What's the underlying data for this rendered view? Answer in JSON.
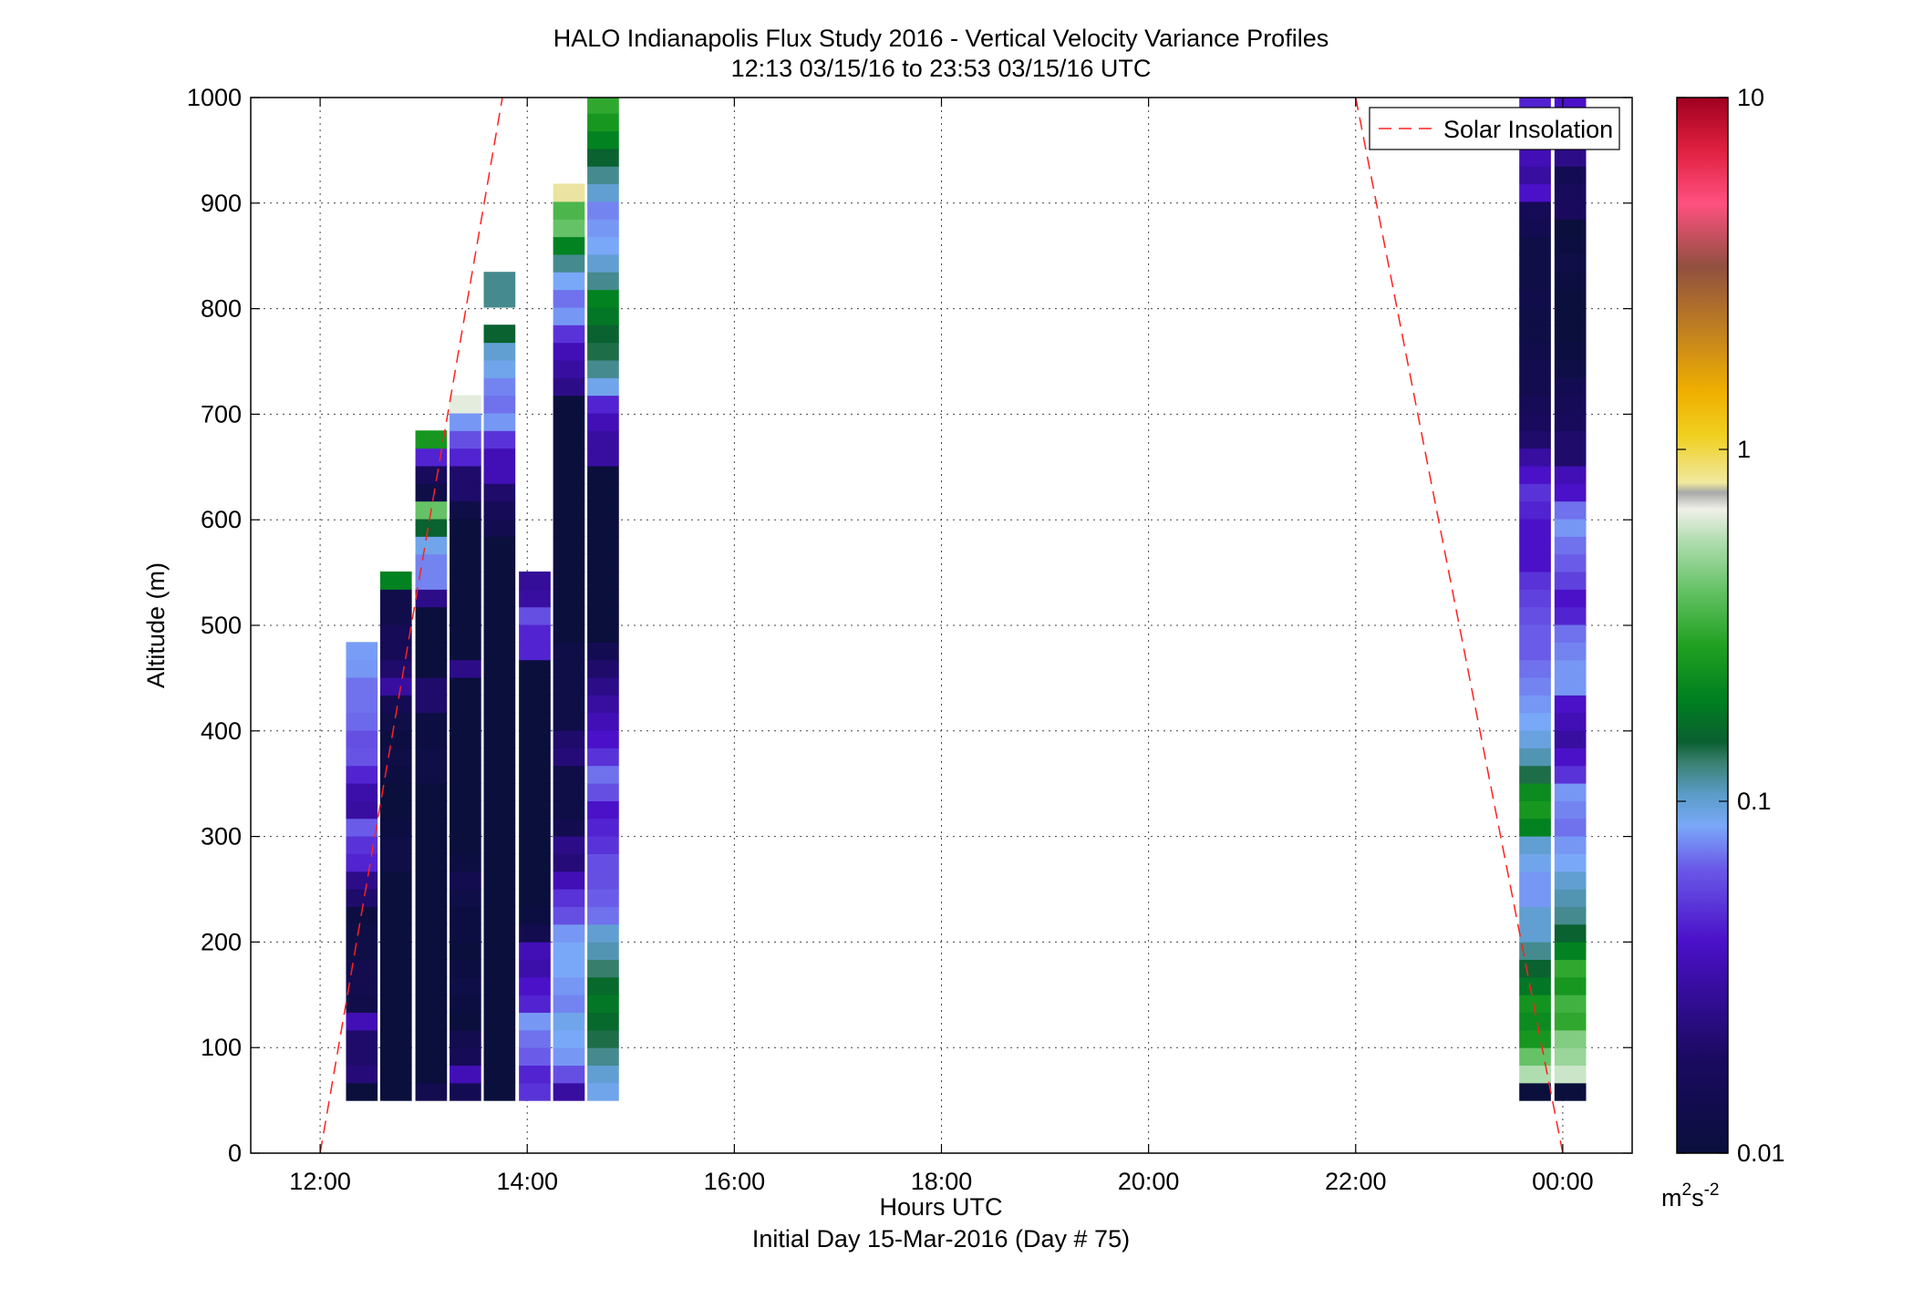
{
  "chart_data": {
    "type": "heatmap",
    "title": "HALO Indianapolis Flux Study 2016 - Vertical Velocity Variance Profiles",
    "subtitle": "12:13 03/15/16 to 23:53 03/15/16  UTC",
    "xlabel": "Hours UTC",
    "xlabel2": "Initial Day 15-Mar-2016 (Day # 75)",
    "ylabel": "Altitude (m)",
    "xlim": [
      11.33,
      24.67
    ],
    "ylim": [
      0,
      1000
    ],
    "x_ticks": [
      12,
      14,
      16,
      18,
      20,
      22,
      24
    ],
    "x_tick_labels": [
      "12:00",
      "14:00",
      "16:00",
      "18:00",
      "20:00",
      "22:00",
      "00:00"
    ],
    "y_ticks": [
      0,
      100,
      200,
      300,
      400,
      500,
      600,
      700,
      800,
      900,
      1000
    ],
    "y_tick_labels": [
      "0",
      "100",
      "200",
      "300",
      "400",
      "500",
      "600",
      "700",
      "800",
      "900",
      "1000"
    ],
    "grid": true,
    "legend": {
      "position": "top-right",
      "entries": [
        "Solar Insolation"
      ]
    },
    "colorbar": {
      "scale": "log",
      "range": [
        0.01,
        10
      ],
      "ticks": [
        0.01,
        0.1,
        1,
        10
      ],
      "tick_labels": [
        "0.01",
        "0.1",
        "1",
        "10"
      ],
      "unit_base": "m",
      "unit_sup1": "2",
      "unit_mid": "s",
      "unit_sup2": "-2"
    },
    "range_gate_bottom_m": 50,
    "range_gate_height_m": 16.7,
    "profile_width_hours": 0.3,
    "profiles": [
      {
        "time": 12.4,
        "values": [
          0.01,
          0.022,
          0.02,
          0.02,
          0.035,
          0.013,
          0.014,
          0.014,
          0.012,
          0.012,
          0.011,
          0.02,
          0.025,
          0.045,
          0.05,
          0.065,
          0.03,
          0.032,
          0.045,
          0.062,
          0.06,
          0.068,
          0.07,
          0.07,
          0.08,
          0.082
        ]
      },
      {
        "time": 12.73,
        "values": [
          0.01,
          0.01,
          0.01,
          0.01,
          0.01,
          0.01,
          0.01,
          0.01,
          0.01,
          0.01,
          0.01,
          0.01,
          0.01,
          0.012,
          0.012,
          0.011,
          0.01,
          0.01,
          0.011,
          0.012,
          0.011,
          0.012,
          0.015,
          0.03,
          0.02,
          0.016,
          0.016,
          0.013,
          0.013,
          0.2
        ]
      },
      {
        "time": 13.07,
        "values": [
          0.014,
          0.01,
          0.01,
          0.01,
          0.01,
          0.01,
          0.01,
          0.01,
          0.01,
          0.01,
          0.01,
          0.01,
          0.01,
          0.01,
          0.01,
          0.01,
          0.01,
          0.01,
          0.012,
          0.012,
          0.011,
          0.011,
          0.02,
          0.02,
          0.01,
          0.01,
          0.01,
          0.01,
          0.025,
          0.075,
          0.075,
          0.09,
          0.15,
          0.4,
          0.012,
          0.017,
          0.045,
          0.25
        ]
      },
      {
        "time": 13.4,
        "values": [
          0.015,
          0.035,
          0.016,
          0.014,
          0.01,
          0.011,
          0.012,
          0.011,
          0.01,
          0.011,
          0.011,
          0.012,
          0.014,
          0.011,
          0.01,
          0.01,
          0.01,
          0.01,
          0.01,
          0.01,
          0.01,
          0.01,
          0.01,
          0.01,
          0.025,
          0.01,
          0.01,
          0.01,
          0.01,
          0.01,
          0.01,
          0.01,
          0.01,
          0.012,
          0.02,
          0.02,
          0.045,
          0.06,
          0.08,
          0.65
        ]
      },
      {
        "time": 13.73,
        "values": [
          0.01,
          0.01,
          0.01,
          0.01,
          0.01,
          0.01,
          0.01,
          0.01,
          0.01,
          0.01,
          0.01,
          0.01,
          0.01,
          0.01,
          0.01,
          0.01,
          0.01,
          0.01,
          0.01,
          0.01,
          0.01,
          0.01,
          0.01,
          0.01,
          0.01,
          0.01,
          0.01,
          0.01,
          0.01,
          0.01,
          0.01,
          0.01,
          0.014,
          0.016,
          0.02,
          0.035,
          0.035,
          0.05,
          0.08,
          0.07,
          0.075,
          0.09,
          0.1,
          0.15,
          null,
          0.12,
          0.12
        ]
      },
      {
        "time": 14.07,
        "values": [
          0.05,
          0.045,
          0.065,
          0.07,
          0.08,
          0.045,
          0.04,
          0.032,
          0.035,
          0.014,
          0.011,
          0.01,
          0.01,
          0.01,
          0.01,
          0.01,
          0.01,
          0.01,
          0.01,
          0.01,
          0.01,
          0.01,
          0.01,
          0.01,
          0.01,
          0.045,
          0.045,
          0.06,
          0.03,
          0.028
        ]
      },
      {
        "time": 14.4,
        "values": [
          0.03,
          0.06,
          0.08,
          0.085,
          0.09,
          0.075,
          0.08,
          0.085,
          0.085,
          0.08,
          0.06,
          0.05,
          0.035,
          0.022,
          0.025,
          0.014,
          0.012,
          0.012,
          0.012,
          0.022,
          0.02,
          0.012,
          0.012,
          0.012,
          0.012,
          0.012,
          0.01,
          0.01,
          0.01,
          0.01,
          0.01,
          0.01,
          0.01,
          0.01,
          0.01,
          0.01,
          0.01,
          0.01,
          0.01,
          0.01,
          0.025,
          0.03,
          0.035,
          0.05,
          0.08,
          0.07,
          0.085,
          0.12,
          0.2,
          0.4,
          0.35,
          0.8
        ]
      },
      {
        "time": 14.73,
        "values": [
          0.09,
          0.1,
          0.12,
          0.14,
          0.16,
          0.18,
          0.16,
          0.13,
          0.11,
          0.1,
          0.07,
          0.065,
          0.06,
          0.06,
          0.05,
          0.045,
          0.04,
          0.06,
          0.07,
          0.05,
          0.04,
          0.035,
          0.03,
          0.025,
          0.02,
          0.015,
          0.01,
          0.01,
          0.01,
          0.01,
          0.01,
          0.01,
          0.01,
          0.01,
          0.01,
          0.01,
          0.03,
          0.03,
          0.035,
          0.045,
          0.09,
          0.12,
          0.14,
          0.15,
          0.18,
          0.2,
          0.12,
          0.1,
          0.085,
          0.08,
          0.075,
          0.1,
          0.12,
          0.15,
          0.2,
          0.25,
          0.3,
          0.6,
          0.4,
          0.3
        ]
      },
      {
        "time": 23.73,
        "values": [
          0.01,
          0.55,
          0.4,
          0.25,
          0.22,
          0.24,
          0.18,
          0.15,
          0.12,
          0.1,
          0.1,
          0.08,
          0.08,
          0.09,
          0.1,
          0.2,
          0.25,
          0.22,
          0.14,
          0.11,
          0.095,
          0.085,
          0.08,
          0.075,
          0.07,
          0.065,
          0.065,
          0.06,
          0.055,
          0.05,
          0.04,
          0.04,
          0.04,
          0.045,
          0.05,
          0.04,
          0.03,
          0.02,
          0.018,
          0.016,
          0.014,
          0.014,
          0.013,
          0.012,
          0.012,
          0.013,
          0.012,
          0.012,
          0.012,
          0.015,
          0.016,
          0.04,
          0.03,
          0.035,
          0.04,
          0.04,
          0.045,
          0.05,
          0.07,
          0.07
        ]
      },
      {
        "time": 24.07,
        "values": [
          0.01,
          0.6,
          0.5,
          0.45,
          0.3,
          0.33,
          0.25,
          0.3,
          0.2,
          0.15,
          0.12,
          0.11,
          0.1,
          0.085,
          0.08,
          0.07,
          0.075,
          0.08,
          0.05,
          0.04,
          0.03,
          0.035,
          0.04,
          0.08,
          0.08,
          0.075,
          0.07,
          0.045,
          0.04,
          0.055,
          0.065,
          0.07,
          0.08,
          0.07,
          0.04,
          0.035,
          0.02,
          0.02,
          0.017,
          0.016,
          0.015,
          0.012,
          0.011,
          0.01,
          0.01,
          0.01,
          0.011,
          0.012,
          0.011,
          0.01,
          0.018,
          0.017,
          0.015,
          0.025,
          0.03,
          0.045,
          0.04,
          0.04,
          0.04,
          0.04,
          0.04,
          0.03,
          0.03
        ]
      }
    ],
    "solar_insolation": [
      {
        "name": "rise",
        "x": [
          12.0,
          13.76
        ],
        "y": [
          0,
          1000
        ]
      },
      {
        "name": "set",
        "x": [
          24.0,
          22.0
        ],
        "y": [
          0,
          1000
        ]
      }
    ],
    "colormap": [
      [
        0.0,
        "#0a0f3c"
      ],
      [
        0.09,
        "#1a0a60"
      ],
      [
        0.2,
        "#4a10c8"
      ],
      [
        0.27,
        "#6a5ae8"
      ],
      [
        0.31,
        "#7aa8f8"
      ],
      [
        0.34,
        "#5a9cc8"
      ],
      [
        0.37,
        "#3a8070"
      ],
      [
        0.39,
        "#0a6030"
      ],
      [
        0.43,
        "#008020"
      ],
      [
        0.48,
        "#20a020"
      ],
      [
        0.53,
        "#60c060"
      ],
      [
        0.58,
        "#b0ddb0"
      ],
      [
        0.61,
        "#f0f0e8"
      ],
      [
        0.626,
        "#a8a8a8"
      ],
      [
        0.635,
        "#f0e8a0"
      ],
      [
        0.68,
        "#f0d020"
      ],
      [
        0.72,
        "#f0b000"
      ],
      [
        0.78,
        "#c08020"
      ],
      [
        0.84,
        "#905040"
      ],
      [
        0.9,
        "#ff5080"
      ],
      [
        0.95,
        "#e02040"
      ],
      [
        1.0,
        "#a00020"
      ]
    ],
    "solar_color": "#ff2020"
  }
}
